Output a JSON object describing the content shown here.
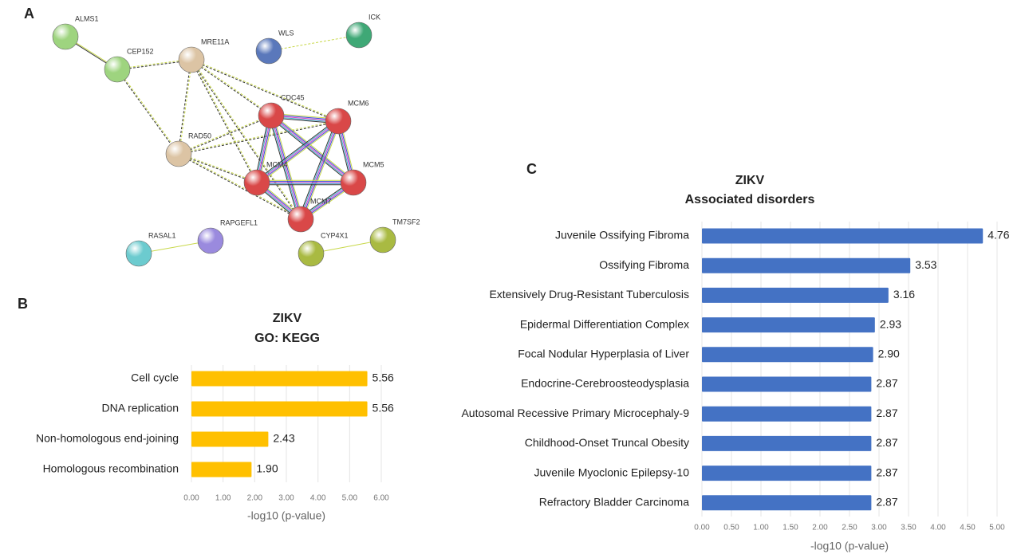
{
  "network": {
    "panel": "A",
    "nodes": [
      {
        "label": "ALMS1",
        "color": "#9ed47f"
      },
      {
        "label": "CEP152",
        "color": "#9ed47f"
      },
      {
        "label": "MRE11A",
        "color": "#dcc4a4"
      },
      {
        "label": "WLS",
        "color": "#5a78bb"
      },
      {
        "label": "ICK",
        "color": "#3fa876"
      },
      {
        "label": "CDC45",
        "color": "#d94848"
      },
      {
        "label": "MCM6",
        "color": "#d94848"
      },
      {
        "label": "RAD50",
        "color": "#dcc4a4"
      },
      {
        "label": "MCM4",
        "color": "#d94848"
      },
      {
        "label": "MCM5",
        "color": "#d94848"
      },
      {
        "label": "MCM7",
        "color": "#d94848"
      },
      {
        "label": "RASAL1",
        "color": "#6ccbcf"
      },
      {
        "label": "RAPGEFL1",
        "color": "#9a8ade"
      },
      {
        "label": "CYP4X1",
        "color": "#a9ba42"
      },
      {
        "label": "TM7SF2",
        "color": "#a9ba42"
      }
    ]
  },
  "chart_data": [
    {
      "type": "hbar",
      "panel": "B",
      "title": "ZIKV",
      "subtitle": "GO: KEGG",
      "categories": [
        "Cell cycle",
        "DNA replication",
        "Non-homologous end-joining",
        "Homologous recombination"
      ],
      "values": [
        5.56,
        5.56,
        2.43,
        1.9
      ],
      "value_labels": [
        "5.56",
        "5.56",
        "2.43",
        "1.90"
      ],
      "color": "#ffc000",
      "xlim": [
        0,
        6
      ],
      "xticks": [
        {
          "value": 0,
          "label": "0.00"
        },
        {
          "value": 1,
          "label": "1.00"
        },
        {
          "value": 2,
          "label": "2.00"
        },
        {
          "value": 3,
          "label": "3.00"
        },
        {
          "value": 4,
          "label": "4.00"
        },
        {
          "value": 5,
          "label": "5.00"
        },
        {
          "value": 6,
          "label": "6.00"
        }
      ],
      "xlabel": "-log10 (p-value)",
      "grid": true
    },
    {
      "type": "hbar",
      "panel": "C",
      "title": "ZIKV",
      "subtitle": "Associated disorders",
      "categories": [
        "Juvenile Ossifying Fibroma",
        "Ossifying Fibroma",
        "Extensively Drug-Resistant Tuberculosis",
        "Epidermal Differentiation Complex",
        "Focal Nodular Hyperplasia of Liver",
        "Endocrine-Cerebroosteodysplasia",
        "Autosomal Recessive Primary Microcephaly-9",
        "Childhood-Onset Truncal Obesity",
        "Juvenile Myoclonic Epilepsy-10",
        "Refractory Bladder Carcinoma"
      ],
      "values": [
        4.76,
        3.53,
        3.16,
        2.93,
        2.9,
        2.87,
        2.87,
        2.87,
        2.87,
        2.87
      ],
      "value_labels": [
        "4.76",
        "3.53",
        "3.16",
        "2.93",
        "2.90",
        "2.87",
        "2.87",
        "2.87",
        "2.87",
        "2.87"
      ],
      "color": "#4472c4",
      "xlim": [
        0,
        5
      ],
      "xticks": [
        {
          "value": 0,
          "label": "0.00"
        },
        {
          "value": 0.5,
          "label": "0.50"
        },
        {
          "value": 1,
          "label": "1.00"
        },
        {
          "value": 1.5,
          "label": "1.50"
        },
        {
          "value": 2,
          "label": "2.00"
        },
        {
          "value": 2.5,
          "label": "2.50"
        },
        {
          "value": 3,
          "label": "3.00"
        },
        {
          "value": 3.5,
          "label": "3.50"
        },
        {
          "value": 4,
          "label": "4.00"
        },
        {
          "value": 4.5,
          "label": "4.50"
        },
        {
          "value": 5,
          "label": "5.00"
        }
      ],
      "xlabel": "-log10 (p-value)",
      "grid": true
    }
  ]
}
